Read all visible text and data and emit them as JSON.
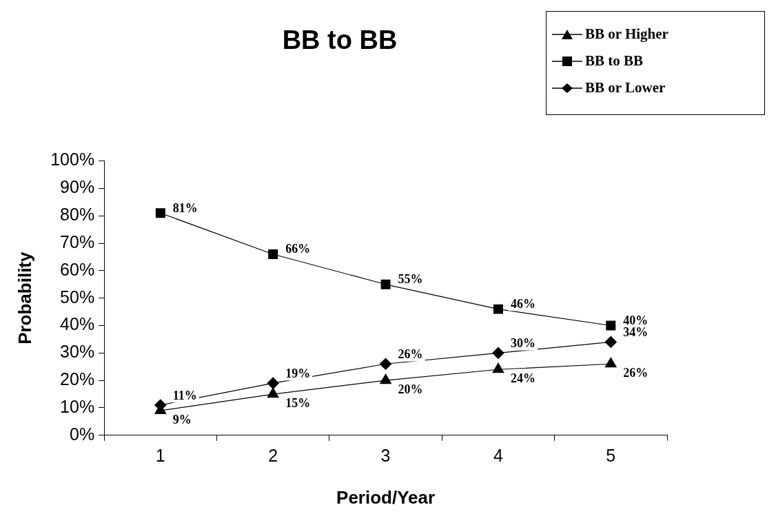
{
  "chart_data": {
    "type": "line",
    "title": "BB to BB",
    "xlabel": "Period/Year",
    "ylabel": "Probability",
    "categories": [
      "1",
      "2",
      "3",
      "4",
      "5"
    ],
    "series": [
      {
        "name": "BB or Higher",
        "color": "#000000",
        "marker": "triangle",
        "values": [
          9,
          15,
          20,
          24,
          26
        ],
        "value_labels": [
          "9%",
          "15%",
          "20%",
          "24%",
          "26%"
        ]
      },
      {
        "name": "BB to BB",
        "color": "#000000",
        "marker": "square",
        "values": [
          81,
          66,
          55,
          46,
          40
        ],
        "value_labels": [
          "81%",
          "66%",
          "55%",
          "46%",
          "40%"
        ]
      },
      {
        "name": "BB or Lower",
        "color": "#000000",
        "marker": "diamond",
        "values": [
          11,
          19,
          26,
          30,
          34
        ],
        "value_labels": [
          "11%",
          "19%",
          "26%",
          "30%",
          "34%"
        ]
      }
    ],
    "ylim": [
      0,
      100
    ],
    "yticks": [
      {
        "value": 0,
        "label": "0%"
      },
      {
        "value": 10,
        "label": "10%"
      },
      {
        "value": 20,
        "label": "20%"
      },
      {
        "value": 30,
        "label": "30%"
      },
      {
        "value": 40,
        "label": "40%"
      },
      {
        "value": 50,
        "label": "50%"
      },
      {
        "value": 60,
        "label": "60%"
      },
      {
        "value": 70,
        "label": "70%"
      },
      {
        "value": 80,
        "label": "80%"
      },
      {
        "value": 90,
        "label": "90%"
      },
      {
        "value": 100,
        "label": "100%"
      }
    ],
    "grid": false,
    "legend": "top right"
  }
}
